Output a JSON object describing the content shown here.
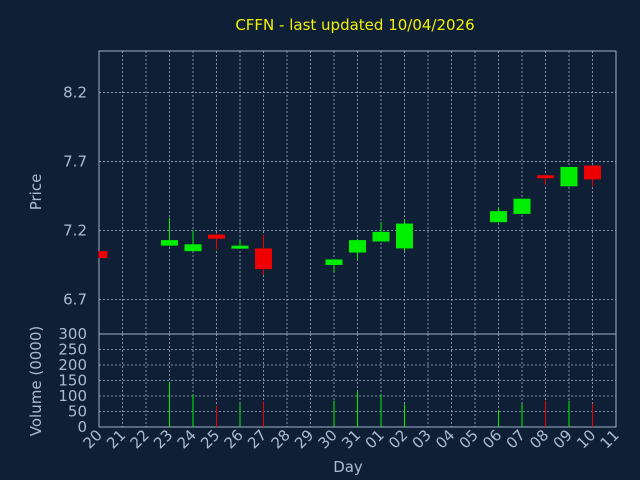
{
  "title": "CFFN - last updated 10/04/2026",
  "chart_data": [
    {
      "type": "candlestick",
      "ylabel": "Price",
      "ylim": [
        6.45,
        8.5
      ],
      "yticks": [
        6.7,
        7.2,
        7.7,
        8.2
      ],
      "ytick_labels": [
        "6.7",
        "7.2",
        "7.7",
        "8.2"
      ],
      "grid": true,
      "colors": {
        "up": "#00ee00",
        "down": "#ee0000"
      },
      "x": [
        "20",
        "21",
        "22",
        "23",
        "24",
        "25",
        "26",
        "27",
        "28",
        "29",
        "30",
        "31",
        "01",
        "02",
        "03",
        "04",
        "05",
        "06",
        "07",
        "08",
        "09",
        "10",
        "11"
      ],
      "candles": [
        {
          "x": "20",
          "open": 7.05,
          "close": 7.0,
          "high": 7.05,
          "low": 7.0
        },
        {
          "x": "23",
          "open": 7.09,
          "close": 7.13,
          "high": 7.29,
          "low": 7.09
        },
        {
          "x": "24",
          "open": 7.05,
          "close": 7.1,
          "high": 7.2,
          "low": 7.05
        },
        {
          "x": "25",
          "open": 7.17,
          "close": 7.14,
          "high": 7.18,
          "low": 7.06
        },
        {
          "x": "26",
          "open": 7.08,
          "close": 7.09,
          "high": 7.13,
          "low": 7.08
        },
        {
          "x": "27",
          "open": 7.07,
          "close": 6.92,
          "high": 7.17,
          "low": 6.88
        },
        {
          "x": "30",
          "open": 6.95,
          "close": 6.99,
          "high": 6.99,
          "low": 6.9
        },
        {
          "x": "31",
          "open": 7.04,
          "close": 7.13,
          "high": 7.14,
          "low": 6.99
        },
        {
          "x": "01",
          "open": 7.12,
          "close": 7.19,
          "high": 7.26,
          "low": 7.12
        },
        {
          "x": "02",
          "open": 7.07,
          "close": 7.25,
          "high": 7.28,
          "low": 7.05
        },
        {
          "x": "06",
          "open": 7.26,
          "close": 7.34,
          "high": 7.37,
          "low": 7.26
        },
        {
          "x": "07",
          "open": 7.32,
          "close": 7.43,
          "high": 7.43,
          "low": 7.32
        },
        {
          "x": "08",
          "open": 7.6,
          "close": 7.58,
          "high": 7.6,
          "low": 7.53
        },
        {
          "x": "09",
          "open": 7.52,
          "close": 7.66,
          "high": 7.66,
          "low": 7.52
        },
        {
          "x": "10",
          "open": 7.67,
          "close": 7.57,
          "high": 7.67,
          "low": 7.52
        }
      ]
    },
    {
      "type": "bar",
      "ylabel": "Volume (0000)",
      "xlabel": "Day",
      "ylim": [
        0,
        300
      ],
      "yticks": [
        0,
        50,
        100,
        150,
        200,
        250,
        300
      ],
      "ytick_labels": [
        "0",
        "50",
        "100",
        "150",
        "200",
        "250",
        "300"
      ],
      "grid": true,
      "categories": [
        "20",
        "23",
        "24",
        "25",
        "26",
        "27",
        "30",
        "31",
        "01",
        "02",
        "06",
        "07",
        "08",
        "09",
        "10"
      ],
      "values": [
        0,
        145,
        105,
        68,
        75,
        82,
        85,
        115,
        105,
        73,
        55,
        75,
        85,
        85,
        75
      ],
      "direction": [
        "down",
        "up",
        "up",
        "down",
        "up",
        "down",
        "up",
        "up",
        "up",
        "up",
        "up",
        "up",
        "down",
        "up",
        "down"
      ]
    }
  ]
}
